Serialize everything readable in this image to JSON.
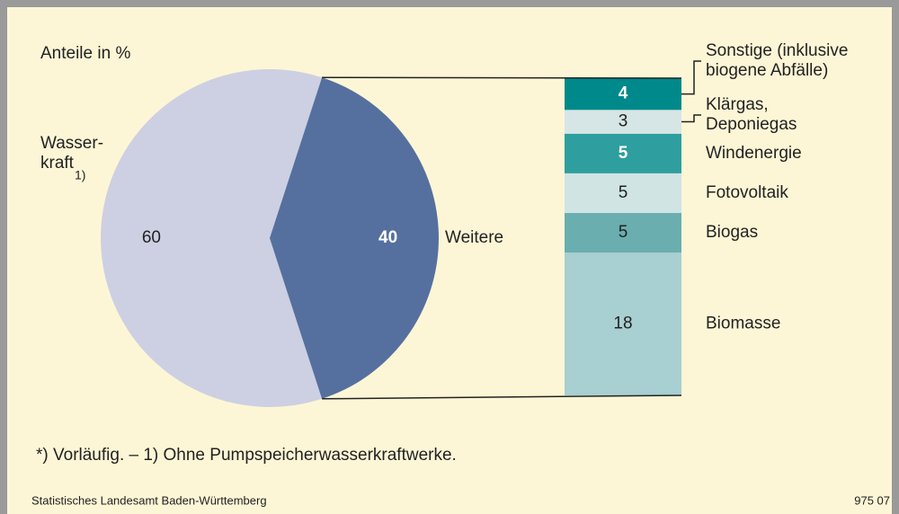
{
  "chart_data": {
    "type": "pie",
    "subtitle": "Anteile in %",
    "pie": {
      "labels": [
        [
          "Wasser-",
          "kraft"
        ],
        [
          "Weitere"
        ]
      ],
      "label_notes": [
        "1)",
        null
      ],
      "values": [
        60,
        40
      ],
      "colors": [
        "#cdd0e2",
        "#55709f"
      ]
    },
    "stack": {
      "categories": [
        [
          "Biomasse"
        ],
        [
          "Biogas"
        ],
        [
          "Fotovoltaik"
        ],
        [
          "Windenergie"
        ],
        [
          "Klärgas,",
          "Deponiegas"
        ],
        [
          "Sonstige (inklusive",
          "biogene Abfälle)"
        ]
      ],
      "values": [
        18,
        5,
        5,
        5,
        3,
        4
      ],
      "colors": [
        "#a8cfd1",
        "#6aaeb0",
        "#d0e4e4",
        "#2f9e9e",
        "#d6e6e6",
        "#00898a"
      ]
    },
    "footnote": "*) Vorläufig. – 1) Ohne Pumpspeicherwasserkraftwerke.",
    "source": "Statistisches Landesamt Baden-Württemberg",
    "code": "975 07"
  }
}
